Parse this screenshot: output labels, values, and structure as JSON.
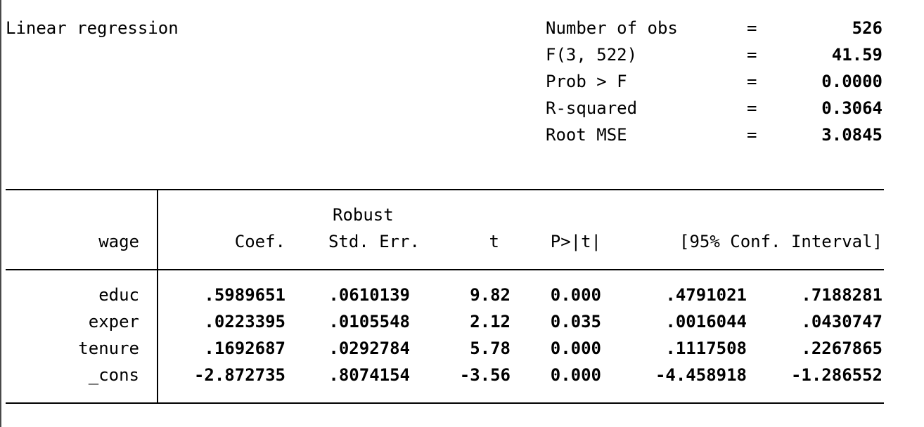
{
  "title": "Linear regression",
  "stats": [
    {
      "label": "Number of obs",
      "eq": "=",
      "value": "526"
    },
    {
      "label": "F(3, 522)",
      "eq": "=",
      "value": "41.59"
    },
    {
      "label": "Prob > F",
      "eq": "=",
      "value": "0.0000"
    },
    {
      "label": "R-squared",
      "eq": "=",
      "value": "0.3064"
    },
    {
      "label": "Root MSE",
      "eq": "=",
      "value": "3.0845"
    }
  ],
  "header": {
    "depvar": "wage",
    "robust": "Robust",
    "coef": "Coef.",
    "stderr": "Std. Err.",
    "t": "t",
    "p": "P>|t|",
    "ci": "[95% Conf. Interval]"
  },
  "rows": [
    {
      "var": "educ",
      "coef": ".5989651",
      "se": ".0610139",
      "t": "9.82",
      "p": "0.000",
      "lo": ".4791021",
      "hi": ".7188281"
    },
    {
      "var": "exper",
      "coef": ".0223395",
      "se": ".0105548",
      "t": "2.12",
      "p": "0.035",
      "lo": ".0016044",
      "hi": ".0430747"
    },
    {
      "var": "tenure",
      "coef": ".1692687",
      "se": ".0292784",
      "t": "5.78",
      "p": "0.000",
      "lo": ".1117508",
      "hi": ".2267865"
    },
    {
      "var": "_cons",
      "coef": "-2.872735",
      "se": ".8074154",
      "t": "-3.56",
      "p": "0.000",
      "lo": "-4.458918",
      "hi": "-1.286552"
    }
  ]
}
